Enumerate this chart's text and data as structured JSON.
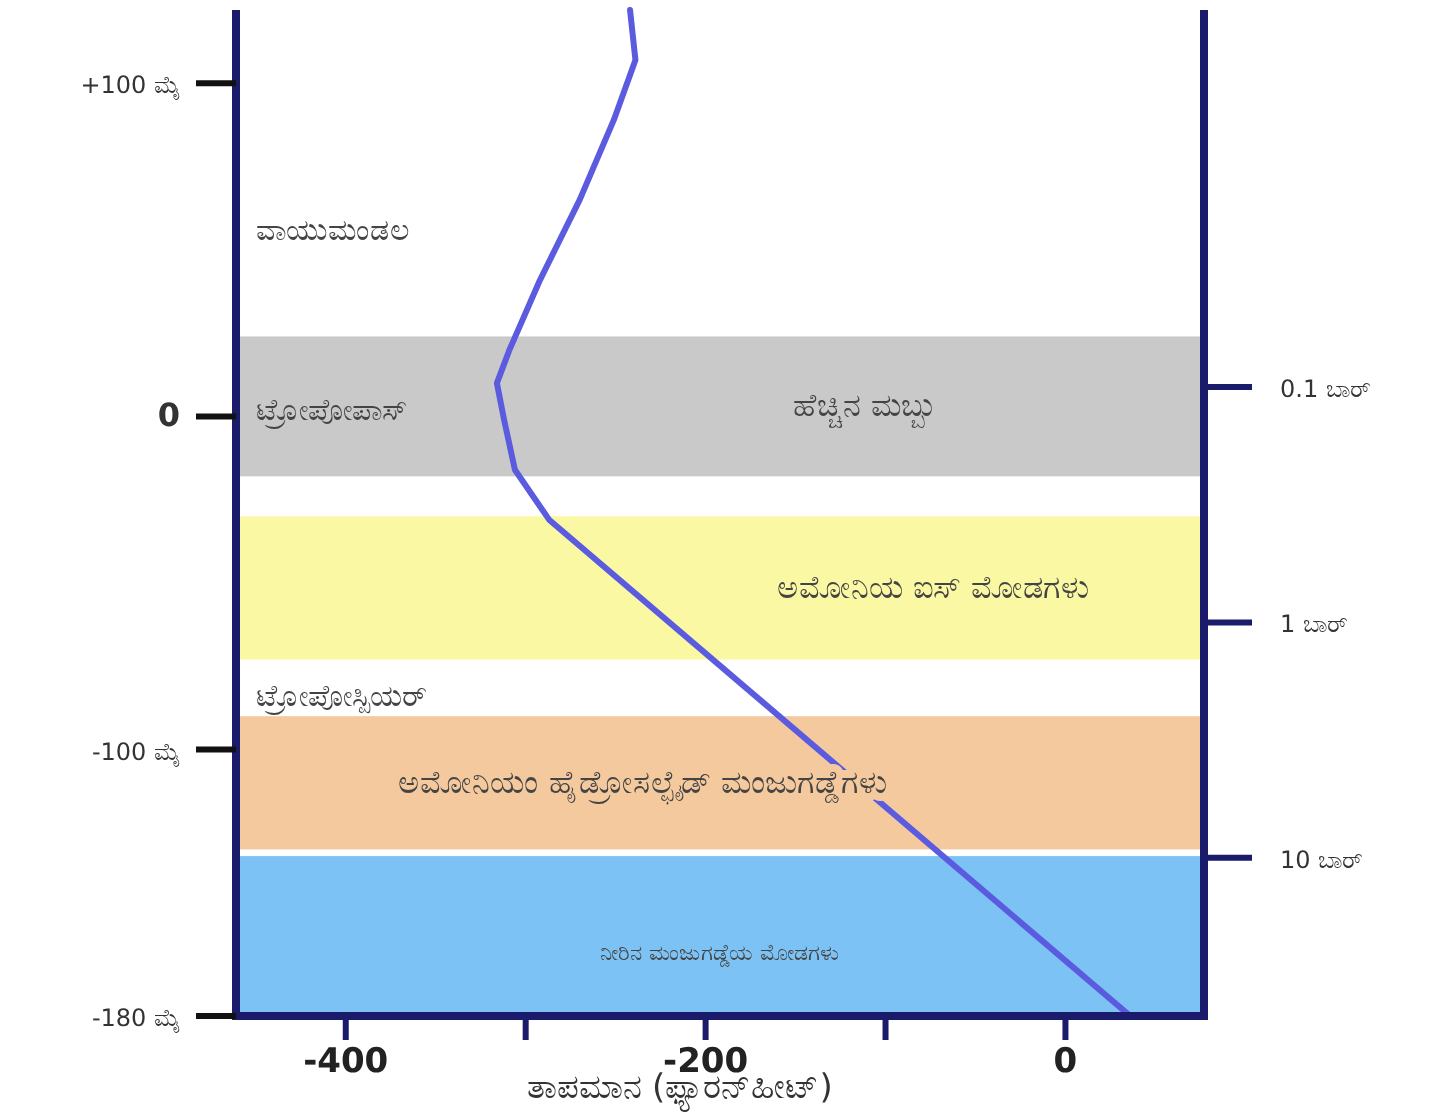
{
  "chart_data": {
    "type": "line",
    "xlabel": "ತಾಪಮಾನ (ಫ್ಯಾರನ್‌ಹೀಟ್)",
    "x": [
      -242,
      -239,
      -251,
      -270,
      -292,
      -309,
      -316,
      -312,
      -306,
      -287,
      36
    ],
    "series": [
      {
        "color": "#5b5be0",
        "values": [
          122,
          107,
          89,
          65,
          41,
          20,
          10,
          -1,
          -16,
          -31,
          -180
        ]
      }
    ],
    "xlim": [
      -461,
      77
    ],
    "xticks": [
      -400,
      {
        "value": -300,
        "label": null
      },
      -200,
      {
        "value": -100,
        "label": null
      },
      0
    ],
    "ylim": [
      -180,
      122
    ],
    "yticks": [
      {
        "value": 100,
        "label": "+100 ಮೈ"
      },
      0,
      {
        "value": -100,
        "label": "-100 ಮೈ"
      },
      {
        "value": -180,
        "label": "-180 ಮೈ"
      }
    ],
    "y2lim": [
      47,
      0.0025
    ],
    "y2ticks": [
      {
        "value": 0.1,
        "label": "0.1 ಬಾರ್"
      },
      {
        "value": 1,
        "label": "1 ಬಾರ್"
      },
      {
        "value": 10,
        "label": "10 ಬಾರ್"
      }
    ],
    "log": "y2",
    "bands": [
      {
        "axis": "y",
        "from": 24,
        "to": -18,
        "label": "ಹೆಚ್ಚಿನ ಮಬ್ಬು",
        "color": "#c9c9c9"
      },
      {
        "axis": "y",
        "from": -30,
        "to": -73,
        "label": "ಅಮೋನಿಯ ಐಸ್ ಮೋಡಗಳು",
        "color": "#fbf8a3"
      },
      {
        "axis": "y",
        "from": -90,
        "to": -130,
        "label": "ಅಮೋನಿಯಂ ಹೈಡ್ರೋಸಲ್ಫೈಡ್ ಮಂಜುಗಡ್ಡೆಗಳು",
        "color": "#f4c99d"
      },
      {
        "axis": "y",
        "from": -132,
        "to": -180,
        "label": "ನೀರಿನ ಮಂಜುಗಡ್ಡೆಯ ಮೋಡಗಳು",
        "color": "#7cc2f4"
      }
    ],
    "annotations": [
      "ವಾಯುಮಂಡಲ",
      "ಟ್ರೋಪೋಪಾಸ್",
      "ಟ್ರೋಪೋಸ್ಪಿಯರ್"
    ]
  }
}
